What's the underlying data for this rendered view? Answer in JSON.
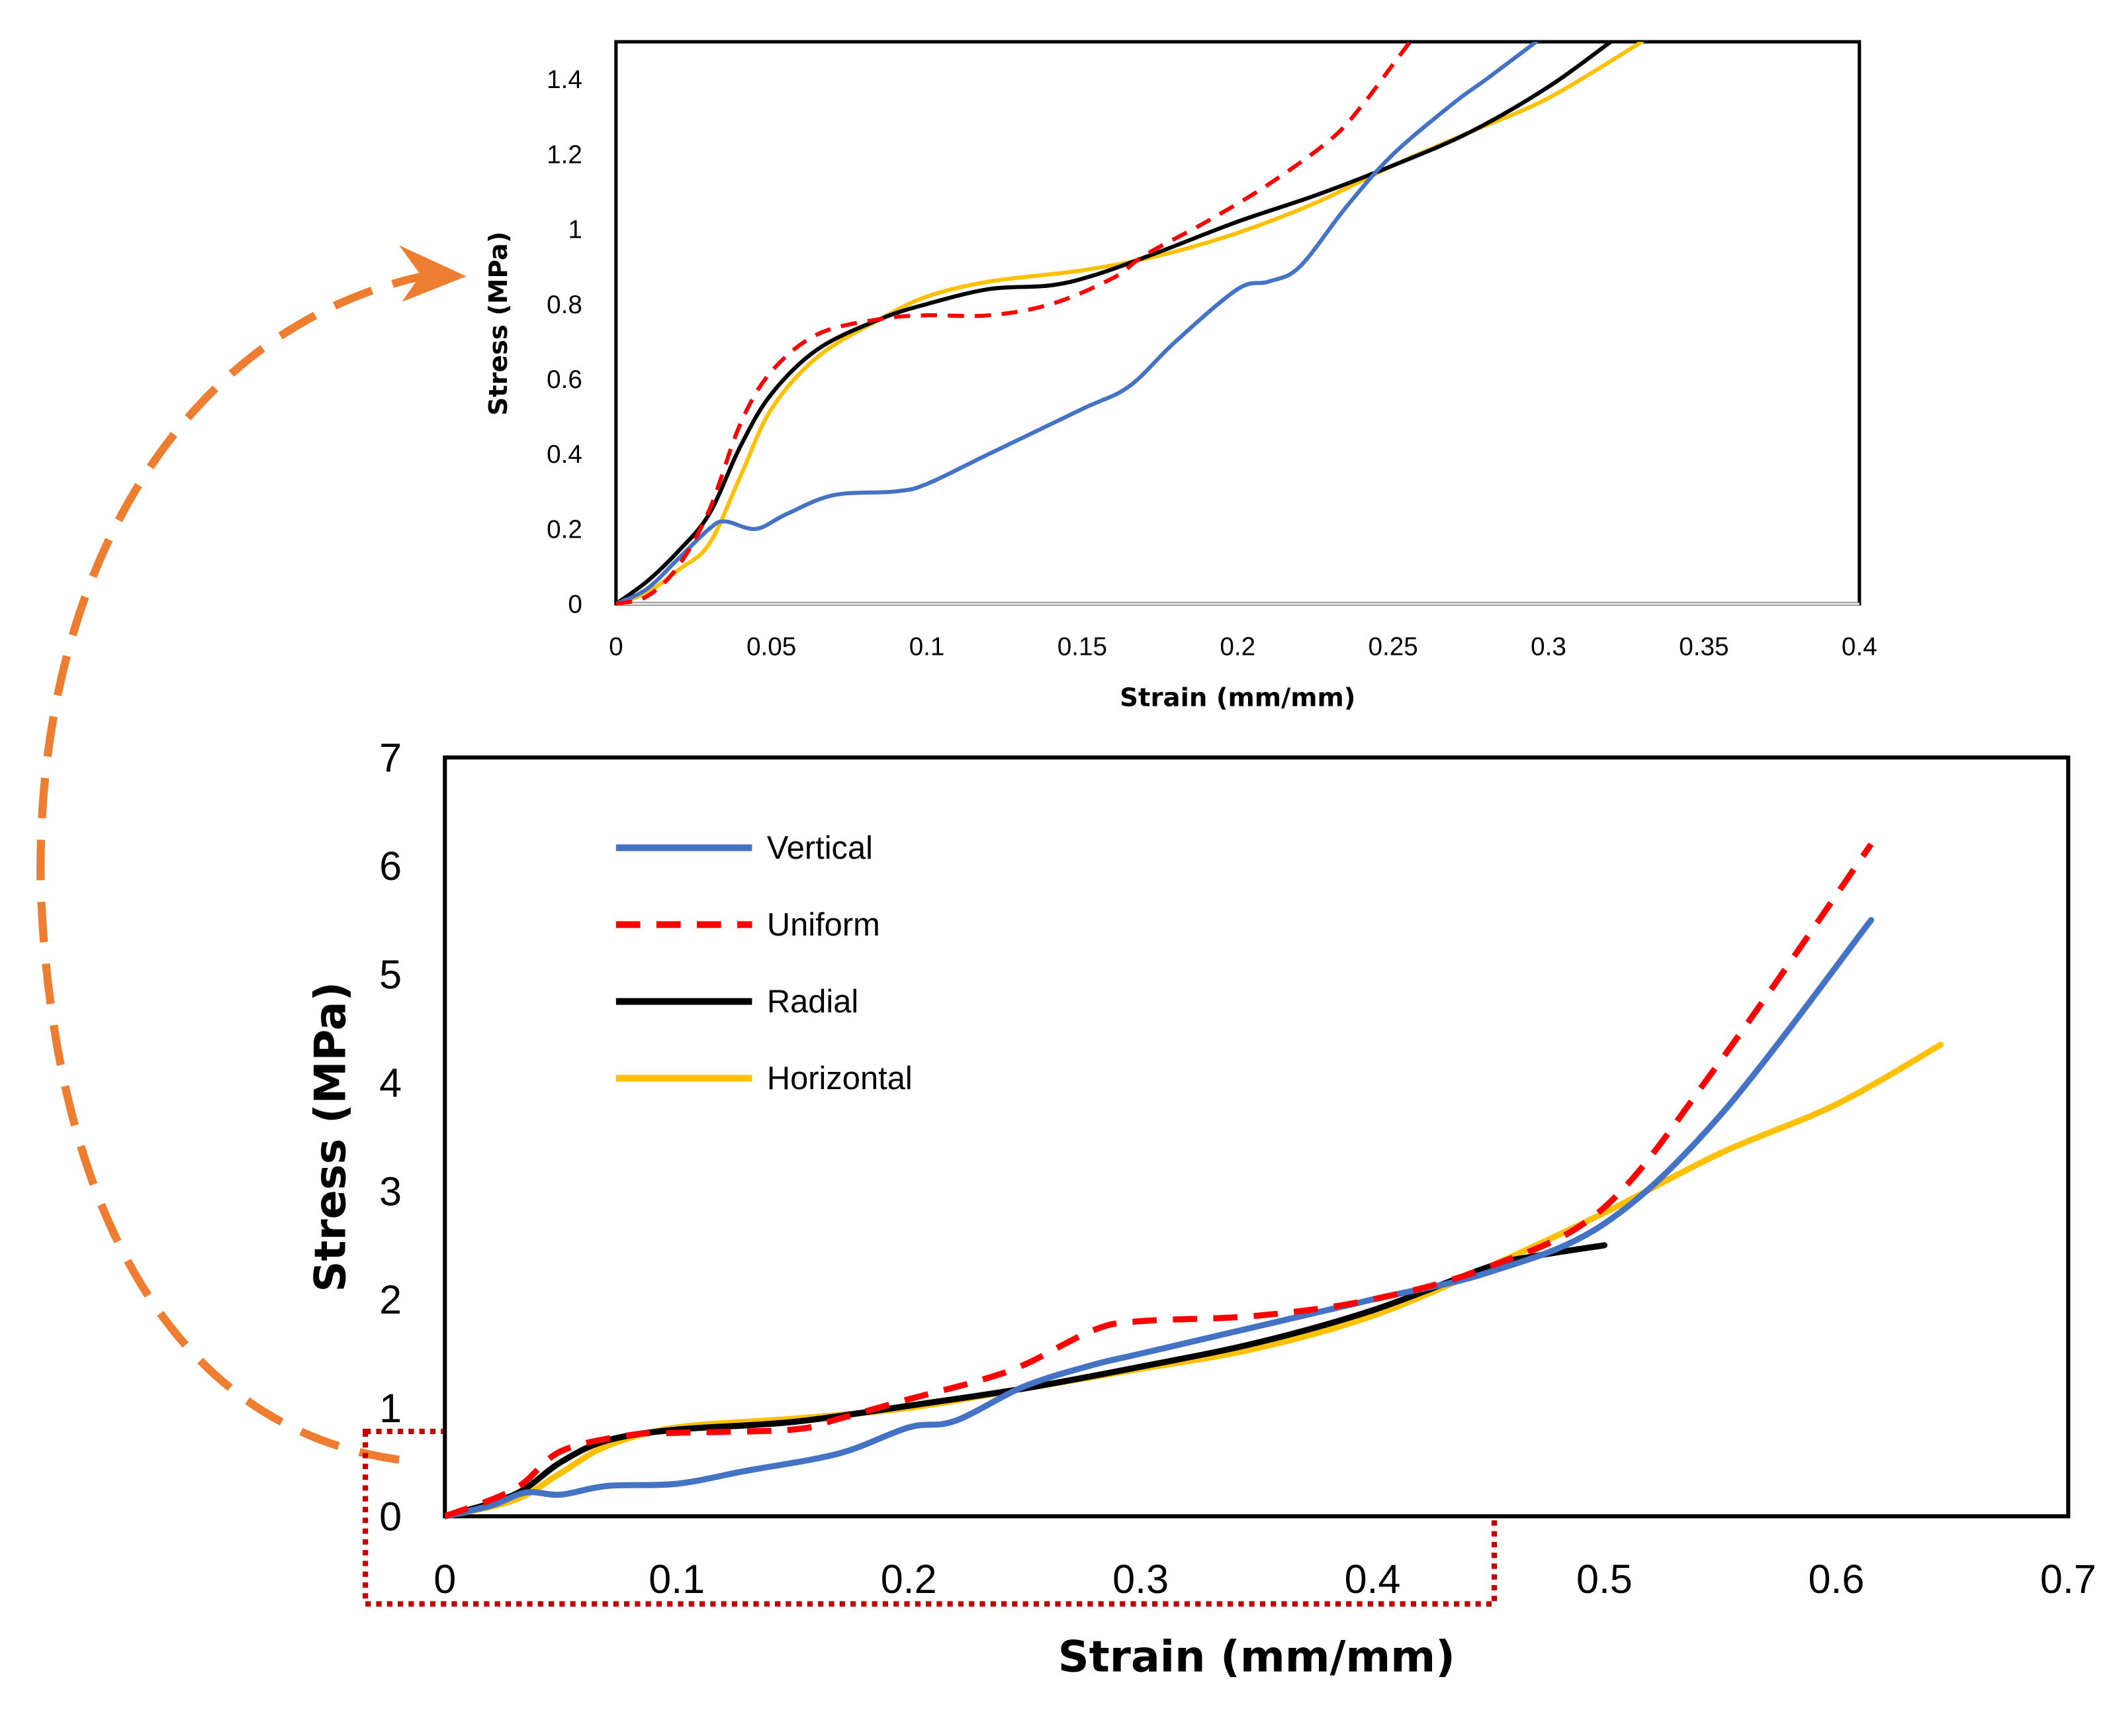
{
  "colors": {
    "Vertical": "#4472C4",
    "Uniform": "#FF0000",
    "Radial": "#000000",
    "Horizontal": "#FFC000",
    "arrow": "#ED7D31",
    "zoom_box": "#C00000"
  },
  "chart_data": [
    {
      "type": "line",
      "name": "inset",
      "title": "",
      "xlabel": "Strain (mm/mm)",
      "ylabel": "Stress (MPa)",
      "xlim": [
        0,
        0.4
      ],
      "ylim": [
        0,
        1.5
      ],
      "xticks": [
        "0",
        "0.05",
        "0.1",
        "0.15",
        "0.2",
        "0.25",
        "0.3",
        "0.35",
        "0.4"
      ],
      "yticks": [
        "0",
        "0.2",
        "0.4",
        "0.6",
        "0.8",
        "1",
        "1.2",
        "1.4"
      ],
      "xtick_values": [
        0,
        0.05,
        0.1,
        0.15,
        0.2,
        0.25,
        0.3,
        0.35,
        0.4
      ],
      "ytick_values": [
        0,
        0.2,
        0.4,
        0.6,
        0.8,
        1,
        1.2,
        1.4
      ],
      "grid": false,
      "series": [
        {
          "name": "Vertical",
          "style": "solid",
          "x": [
            0,
            0.01,
            0.02,
            0.03,
            0.035,
            0.045,
            0.055,
            0.07,
            0.09,
            0.1,
            0.12,
            0.15,
            0.165,
            0.18,
            0.2,
            0.21,
            0.22,
            0.235,
            0.25,
            0.27,
            0.28,
            0.296
          ],
          "y": [
            0,
            0.04,
            0.12,
            0.2,
            0.22,
            0.2,
            0.24,
            0.29,
            0.3,
            0.32,
            0.4,
            0.52,
            0.58,
            0.7,
            0.84,
            0.86,
            0.9,
            1.06,
            1.2,
            1.34,
            1.4,
            1.5
          ]
        },
        {
          "name": "Uniform",
          "style": "dashed",
          "x": [
            0,
            0.01,
            0.02,
            0.03,
            0.04,
            0.05,
            0.065,
            0.085,
            0.1,
            0.12,
            0.14,
            0.16,
            0.17,
            0.19,
            0.21,
            0.23,
            0.24,
            0.25,
            0.26
          ],
          "y": [
            0,
            0.02,
            0.1,
            0.25,
            0.48,
            0.62,
            0.72,
            0.76,
            0.77,
            0.77,
            0.8,
            0.87,
            0.93,
            1.02,
            1.12,
            1.24,
            1.33,
            1.44,
            1.55
          ]
        },
        {
          "name": "Radial",
          "style": "solid",
          "x": [
            0,
            0.01,
            0.02,
            0.03,
            0.04,
            0.05,
            0.065,
            0.085,
            0.1,
            0.12,
            0.14,
            0.155,
            0.175,
            0.2,
            0.225,
            0.25,
            0.275,
            0.3,
            0.32
          ],
          "y": [
            0,
            0.06,
            0.14,
            0.24,
            0.42,
            0.56,
            0.68,
            0.76,
            0.8,
            0.84,
            0.85,
            0.88,
            0.94,
            1.02,
            1.09,
            1.17,
            1.26,
            1.38,
            1.5
          ]
        },
        {
          "name": "Horizontal",
          "style": "solid",
          "x": [
            0,
            0.01,
            0.02,
            0.03,
            0.04,
            0.05,
            0.065,
            0.085,
            0.1,
            0.12,
            0.15,
            0.175,
            0.2,
            0.225,
            0.25,
            0.275,
            0.3,
            0.33
          ],
          "y": [
            0,
            0.03,
            0.09,
            0.16,
            0.34,
            0.52,
            0.66,
            0.76,
            0.82,
            0.86,
            0.89,
            0.93,
            0.99,
            1.07,
            1.17,
            1.26,
            1.35,
            1.5
          ]
        }
      ]
    },
    {
      "type": "line",
      "name": "main",
      "title": "",
      "xlabel": "Strain (mm/mm)",
      "ylabel": "Stress (MPa)",
      "xlim": [
        0,
        0.7
      ],
      "ylim": [
        0,
        7
      ],
      "xticks": [
        "0",
        "0.1",
        "0.2",
        "0.3",
        "0.4",
        "0.5",
        "0.6",
        "0.7"
      ],
      "yticks": [
        "0",
        "1",
        "2",
        "3",
        "4",
        "5",
        "6",
        "7"
      ],
      "xtick_values": [
        0,
        0.1,
        0.2,
        0.3,
        0.4,
        0.5,
        0.6,
        0.7
      ],
      "ytick_values": [
        0,
        1,
        2,
        3,
        4,
        5,
        6,
        7
      ],
      "grid": false,
      "legend": {
        "placement": "top-left",
        "entries": [
          "Vertical",
          "Uniform",
          "Radial",
          "Horizontal"
        ]
      },
      "series": [
        {
          "name": "Vertical",
          "style": "solid",
          "x": [
            0,
            0.02,
            0.035,
            0.05,
            0.07,
            0.1,
            0.13,
            0.17,
            0.2,
            0.22,
            0.25,
            0.28,
            0.3,
            0.35,
            0.4,
            0.45,
            0.5,
            0.55,
            0.615
          ],
          "y": [
            0,
            0.1,
            0.22,
            0.2,
            0.28,
            0.3,
            0.42,
            0.58,
            0.82,
            0.88,
            1.2,
            1.4,
            1.5,
            1.75,
            2.0,
            2.25,
            2.7,
            3.7,
            5.5
          ]
        },
        {
          "name": "Uniform",
          "style": "dashed",
          "x": [
            0,
            0.03,
            0.05,
            0.08,
            0.1,
            0.15,
            0.17,
            0.2,
            0.23,
            0.25,
            0.28,
            0.3,
            0.35,
            0.4,
            0.45,
            0.5,
            0.55,
            0.615
          ],
          "y": [
            0,
            0.25,
            0.6,
            0.75,
            0.77,
            0.8,
            0.9,
            1.08,
            1.25,
            1.4,
            1.72,
            1.8,
            1.85,
            2.0,
            2.3,
            2.85,
            4.2,
            6.2
          ]
        },
        {
          "name": "Radial",
          "style": "solid",
          "x": [
            0,
            0.03,
            0.05,
            0.07,
            0.1,
            0.15,
            0.2,
            0.25,
            0.3,
            0.35,
            0.4,
            0.45,
            0.47,
            0.5
          ],
          "y": [
            0,
            0.2,
            0.5,
            0.7,
            0.8,
            0.87,
            1.02,
            1.18,
            1.38,
            1.6,
            1.9,
            2.3,
            2.4,
            2.5
          ]
        },
        {
          "name": "Horizontal",
          "style": "solid",
          "x": [
            0,
            0.03,
            0.05,
            0.07,
            0.1,
            0.15,
            0.2,
            0.25,
            0.3,
            0.35,
            0.4,
            0.45,
            0.5,
            0.55,
            0.6,
            0.645
          ],
          "y": [
            0,
            0.15,
            0.4,
            0.65,
            0.82,
            0.9,
            1.0,
            1.18,
            1.36,
            1.55,
            1.85,
            2.3,
            2.8,
            3.35,
            3.8,
            4.35
          ]
        }
      ]
    }
  ]
}
